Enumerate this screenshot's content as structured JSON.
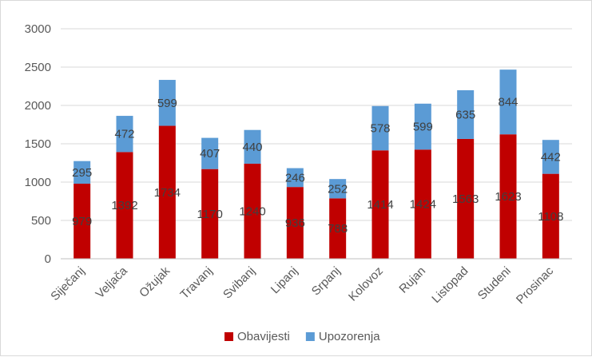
{
  "chart_data": {
    "type": "bar",
    "stacked": true,
    "categories": [
      "Siječanj",
      "Veljača",
      "Ožujak",
      "Travanj",
      "Svibanj",
      "Lipanj",
      "Srpanj",
      "Kolovoz",
      "Rujan",
      "Listopad",
      "Studeni",
      "Prosinac"
    ],
    "series": [
      {
        "name": "Obavijesti",
        "color": "#c00000",
        "values": [
          979,
          1392,
          1734,
          1170,
          1240,
          936,
          788,
          1414,
          1424,
          1563,
          1623,
          1108
        ]
      },
      {
        "name": "Upozorenja",
        "color": "#5b9bd5",
        "values": [
          295,
          472,
          599,
          407,
          440,
          246,
          252,
          578,
          599,
          635,
          844,
          442
        ]
      }
    ],
    "yticks": [
      0,
      500,
      1000,
      1500,
      2000,
      2500,
      3000
    ],
    "ylim": [
      0,
      3000
    ],
    "grid": true,
    "legend": "bottom"
  }
}
